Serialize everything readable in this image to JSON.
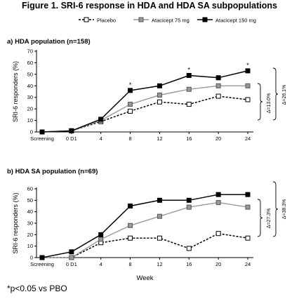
{
  "figure_title": "Figure 1. SRI-6 response in HDA and HDA SA subpopulations",
  "footnote": "*p<0.05 vs PBO",
  "colors": {
    "placebo": "#000000",
    "atacicept_75": "#999999",
    "atacicept_150": "#000000",
    "axis": "#000000"
  },
  "legend": [
    "Placebo",
    "Atacicept 75 mg",
    "Atacicept 150 mg"
  ],
  "chart_data": [
    {
      "type": "line",
      "title": "a) HDA population (n=158)",
      "xlabel": "",
      "ylabel": "SRI-6 responders (%)",
      "ylim": [
        0,
        70
      ],
      "yticks": [
        0,
        10,
        20,
        30,
        40,
        50,
        60,
        70
      ],
      "categories": [
        "Screening",
        "0 D1",
        "4",
        "8",
        "12",
        "16",
        "20",
        "24"
      ],
      "series": [
        {
          "name": "Placebo",
          "values": [
            0,
            1,
            9,
            18,
            26,
            24,
            31,
            28
          ]
        },
        {
          "name": "Atacicept 75 mg",
          "values": [
            0,
            1,
            10,
            24,
            32,
            37,
            40,
            40
          ]
        },
        {
          "name": "Atacicept 150 mg",
          "values": [
            0,
            1,
            11,
            36,
            40,
            49,
            47,
            53
          ]
        }
      ],
      "significance_marks": [
        {
          "category": "8",
          "label": "*"
        },
        {
          "category": "16",
          "label": "*"
        },
        {
          "category": "24",
          "label": "*"
        }
      ],
      "annotations": [
        "Δ=13.0%",
        "Δ=26.1%"
      ]
    },
    {
      "type": "line",
      "title": "b) HDA SA population (n=69)",
      "xlabel": "Week",
      "ylabel": "SRI-6 responders (%)",
      "ylim": [
        0,
        60
      ],
      "yticks": [
        0,
        10,
        20,
        30,
        40,
        50,
        60
      ],
      "categories": [
        "Screening",
        "0 D1",
        "4",
        "8",
        "12",
        "16",
        "20",
        "24"
      ],
      "series": [
        {
          "name": "Placebo",
          "values": [
            0,
            0,
            13,
            17,
            17,
            8,
            21,
            17
          ]
        },
        {
          "name": "Atacicept 75 mg",
          "values": [
            0,
            0,
            16,
            28,
            36,
            44,
            48,
            44
          ]
        },
        {
          "name": "Atacicept 150 mg",
          "values": [
            0,
            5,
            20,
            45,
            50,
            50,
            55,
            55
          ]
        }
      ],
      "significance_marks": [],
      "annotations": [
        "Δ=27.3%",
        "Δ=38.3%"
      ]
    }
  ]
}
